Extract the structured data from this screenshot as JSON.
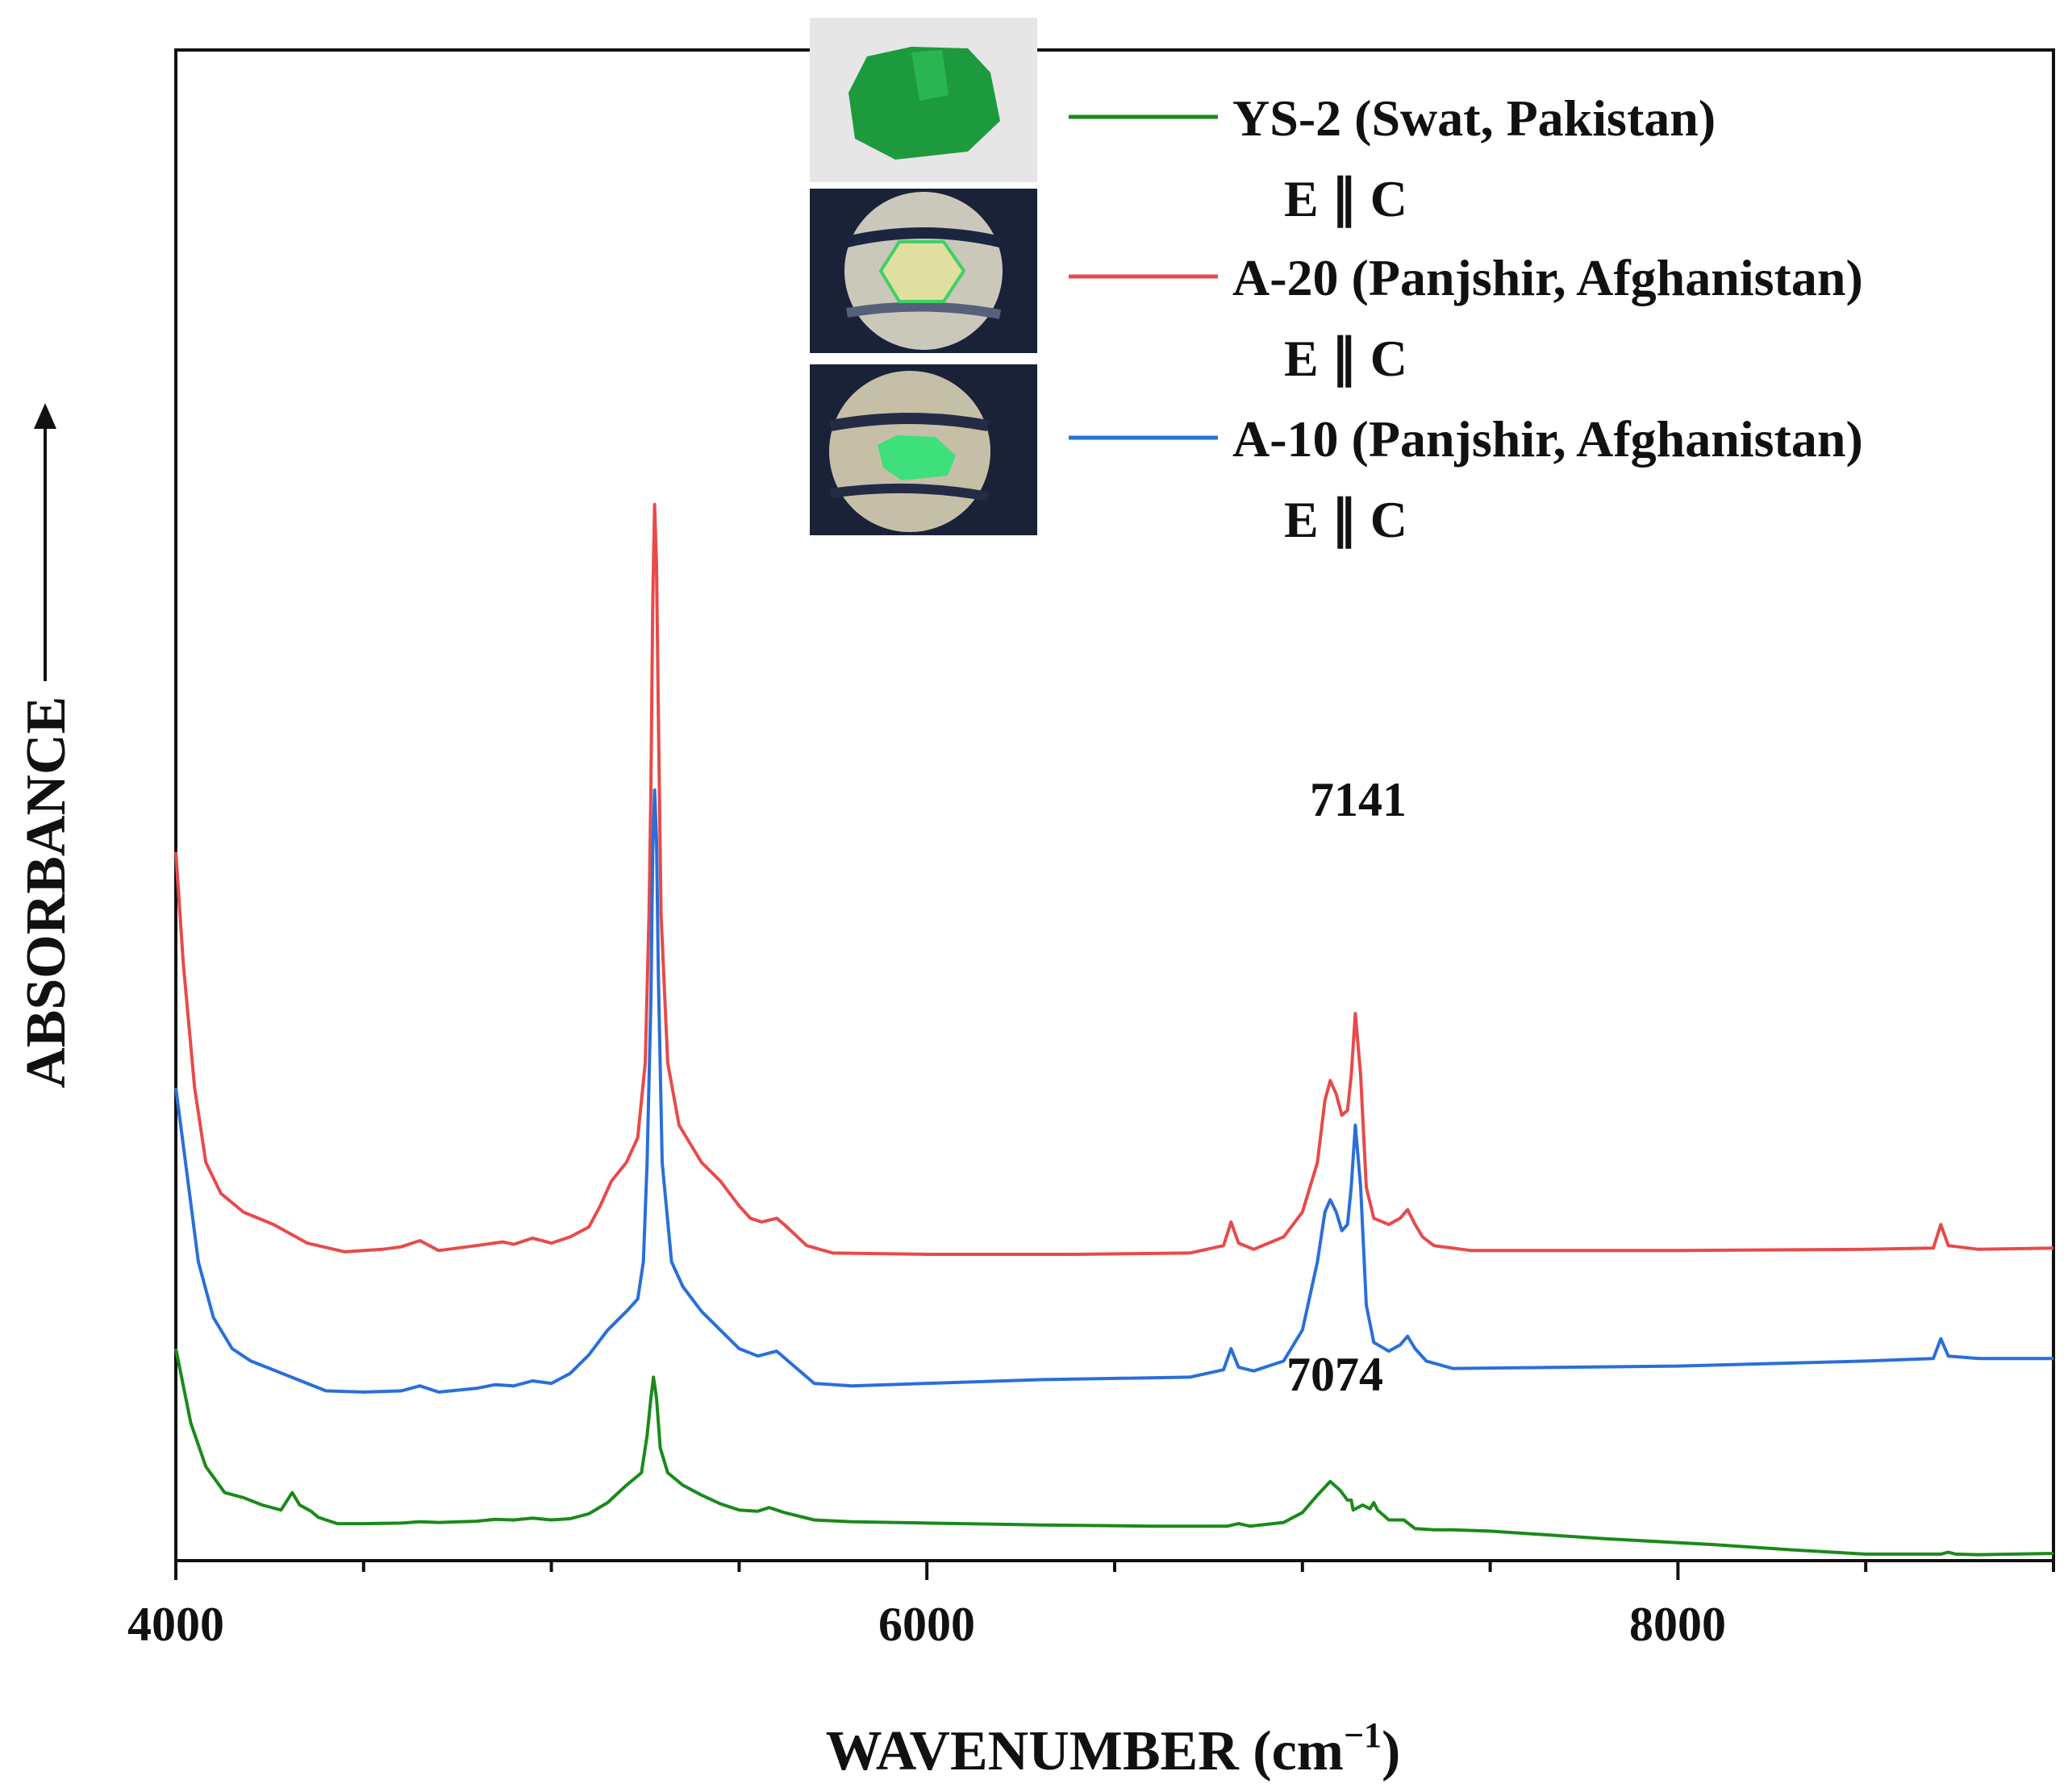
{
  "chart_data": {
    "type": "line",
    "xlabel": "WAVENUMBER (cm",
    "xlabel_sup": "−1",
    "xlabel_close": ")",
    "ylabel": "ABSORBANCE",
    "xlim": [
      4000,
      9000
    ],
    "x_ticks": [
      "4000",
      "6000",
      "8000"
    ],
    "annotations": [
      {
        "text": "7141",
        "x": 7141,
        "series": "A-20 (Panjshir, Afghanistan)"
      },
      {
        "text": "7074",
        "x": 7074,
        "series": "YS-2 (Swat, Pakistan)"
      }
    ],
    "polarization_label": "E ∥ C",
    "series": [
      {
        "name": "YS-2 (Swat, Pakistan)",
        "color": "#1a8a1a",
        "points": [
          [
            4000,
            15.0
          ],
          [
            4040,
            9.0
          ],
          [
            4080,
            5.5
          ],
          [
            4130,
            3.4
          ],
          [
            4180,
            3.0
          ],
          [
            4230,
            2.4
          ],
          [
            4280,
            2.0
          ],
          [
            4310,
            3.4
          ],
          [
            4330,
            2.4
          ],
          [
            4360,
            1.9
          ],
          [
            4380,
            1.4
          ],
          [
            4430,
            0.9
          ],
          [
            4500,
            0.9
          ],
          [
            4600,
            0.95
          ],
          [
            4650,
            1.05
          ],
          [
            4700,
            1.0
          ],
          [
            4800,
            1.1
          ],
          [
            4850,
            1.25
          ],
          [
            4900,
            1.2
          ],
          [
            4950,
            1.35
          ],
          [
            5000,
            1.2
          ],
          [
            5050,
            1.3
          ],
          [
            5100,
            1.7
          ],
          [
            5150,
            2.6
          ],
          [
            5200,
            4.0
          ],
          [
            5240,
            5.0
          ],
          [
            5255,
            8.0
          ],
          [
            5265,
            11.0
          ],
          [
            5272,
            12.7
          ],
          [
            5280,
            11.0
          ],
          [
            5290,
            7.0
          ],
          [
            5310,
            5.0
          ],
          [
            5350,
            4.0
          ],
          [
            5400,
            3.2
          ],
          [
            5450,
            2.5
          ],
          [
            5500,
            2.0
          ],
          [
            5550,
            1.9
          ],
          [
            5580,
            2.2
          ],
          [
            5620,
            1.8
          ],
          [
            5700,
            1.2
          ],
          [
            5800,
            1.05
          ],
          [
            6000,
            0.95
          ],
          [
            6300,
            0.8
          ],
          [
            6600,
            0.7
          ],
          [
            6800,
            0.7
          ],
          [
            6830,
            0.9
          ],
          [
            6860,
            0.7
          ],
          [
            6950,
            1.0
          ],
          [
            7000,
            1.8
          ],
          [
            7040,
            3.2
          ],
          [
            7074,
            4.3
          ],
          [
            7100,
            3.6
          ],
          [
            7120,
            2.8
          ],
          [
            7130,
            2.8
          ],
          [
            7135,
            2.0
          ],
          [
            7160,
            2.4
          ],
          [
            7180,
            2.1
          ],
          [
            7190,
            2.6
          ],
          [
            7200,
            2.0
          ],
          [
            7230,
            1.2
          ],
          [
            7270,
            1.2
          ],
          [
            7300,
            0.5
          ],
          [
            7350,
            0.4
          ],
          [
            7400,
            0.4
          ],
          [
            7500,
            0.3
          ],
          [
            7800,
            -0.3
          ],
          [
            8100,
            -0.8
          ],
          [
            8300,
            -1.2
          ],
          [
            8500,
            -1.55
          ],
          [
            8700,
            -1.55
          ],
          [
            8720,
            -1.4
          ],
          [
            8740,
            -1.55
          ],
          [
            8800,
            -1.6
          ],
          [
            9000,
            -1.5
          ]
        ]
      },
      {
        "name": "A-20 (Panjshir, Afghanistan)",
        "color": "#e84a4a",
        "points": [
          [
            4000,
            55.0
          ],
          [
            4020,
            46.0
          ],
          [
            4050,
            36.0
          ],
          [
            4080,
            30.0
          ],
          [
            4120,
            27.5
          ],
          [
            4180,
            26.0
          ],
          [
            4260,
            25.0
          ],
          [
            4350,
            23.5
          ],
          [
            4450,
            22.8
          ],
          [
            4550,
            23.0
          ],
          [
            4600,
            23.2
          ],
          [
            4650,
            23.7
          ],
          [
            4700,
            22.9
          ],
          [
            4800,
            23.3
          ],
          [
            4870,
            23.6
          ],
          [
            4900,
            23.4
          ],
          [
            4950,
            23.9
          ],
          [
            5000,
            23.5
          ],
          [
            5050,
            24.0
          ],
          [
            5100,
            24.8
          ],
          [
            5130,
            26.5
          ],
          [
            5160,
            28.5
          ],
          [
            5200,
            30.0
          ],
          [
            5230,
            32.0
          ],
          [
            5250,
            38.0
          ],
          [
            5260,
            50.0
          ],
          [
            5265,
            60.0
          ],
          [
            5270,
            75.0
          ],
          [
            5275,
            83.0
          ],
          [
            5280,
            78.0
          ],
          [
            5285,
            66.0
          ],
          [
            5292,
            50.0
          ],
          [
            5310,
            38.0
          ],
          [
            5340,
            33.0
          ],
          [
            5400,
            30.0
          ],
          [
            5450,
            28.5
          ],
          [
            5500,
            26.5
          ],
          [
            5530,
            25.5
          ],
          [
            5560,
            25.2
          ],
          [
            5600,
            25.5
          ],
          [
            5620,
            25.0
          ],
          [
            5680,
            23.3
          ],
          [
            5750,
            22.7
          ],
          [
            6000,
            22.6
          ],
          [
            6400,
            22.6
          ],
          [
            6700,
            22.7
          ],
          [
            6790,
            23.3
          ],
          [
            6810,
            25.2
          ],
          [
            6830,
            23.5
          ],
          [
            6870,
            23.0
          ],
          [
            6950,
            24.0
          ],
          [
            7000,
            26.0
          ],
          [
            7040,
            30.0
          ],
          [
            7060,
            35.0
          ],
          [
            7074,
            36.6
          ],
          [
            7090,
            35.5
          ],
          [
            7105,
            33.8
          ],
          [
            7120,
            34.2
          ],
          [
            7130,
            37.0
          ],
          [
            7141,
            42.0
          ],
          [
            7155,
            37.0
          ],
          [
            7170,
            28.0
          ],
          [
            7190,
            25.5
          ],
          [
            7230,
            25.0
          ],
          [
            7260,
            25.5
          ],
          [
            7280,
            26.2
          ],
          [
            7300,
            25.0
          ],
          [
            7320,
            24.0
          ],
          [
            7350,
            23.3
          ],
          [
            7450,
            22.9
          ],
          [
            8000,
            22.9
          ],
          [
            8500,
            23.0
          ],
          [
            8680,
            23.1
          ],
          [
            8700,
            25.0
          ],
          [
            8720,
            23.3
          ],
          [
            8800,
            23.0
          ],
          [
            9000,
            23.1
          ]
        ]
      },
      {
        "name": "A-10 (Panjshir, Afghanistan)",
        "color": "#2a6fd8",
        "points": [
          [
            4000,
            36.0
          ],
          [
            4030,
            29.0
          ],
          [
            4060,
            22.0
          ],
          [
            4100,
            17.5
          ],
          [
            4150,
            15.0
          ],
          [
            4200,
            14.0
          ],
          [
            4300,
            12.8
          ],
          [
            4400,
            11.6
          ],
          [
            4500,
            11.5
          ],
          [
            4600,
            11.6
          ],
          [
            4650,
            12.0
          ],
          [
            4700,
            11.5
          ],
          [
            4800,
            11.8
          ],
          [
            4850,
            12.1
          ],
          [
            4900,
            12.0
          ],
          [
            4950,
            12.4
          ],
          [
            5000,
            12.2
          ],
          [
            5050,
            13.0
          ],
          [
            5100,
            14.5
          ],
          [
            5150,
            16.5
          ],
          [
            5200,
            18.0
          ],
          [
            5230,
            19.0
          ],
          [
            5245,
            22.0
          ],
          [
            5255,
            30.0
          ],
          [
            5265,
            43.0
          ],
          [
            5270,
            55.0
          ],
          [
            5275,
            60.0
          ],
          [
            5280,
            56.0
          ],
          [
            5285,
            45.0
          ],
          [
            5295,
            30.0
          ],
          [
            5320,
            22.0
          ],
          [
            5350,
            20.0
          ],
          [
            5400,
            18.0
          ],
          [
            5450,
            16.5
          ],
          [
            5500,
            15.0
          ],
          [
            5550,
            14.4
          ],
          [
            5600,
            14.8
          ],
          [
            5650,
            13.5
          ],
          [
            5700,
            12.2
          ],
          [
            5800,
            12.0
          ],
          [
            6000,
            12.2
          ],
          [
            6300,
            12.5
          ],
          [
            6700,
            12.7
          ],
          [
            6790,
            13.3
          ],
          [
            6810,
            15.0
          ],
          [
            6830,
            13.5
          ],
          [
            6870,
            13.2
          ],
          [
            6950,
            14.0
          ],
          [
            7000,
            16.5
          ],
          [
            7040,
            22.0
          ],
          [
            7060,
            26.0
          ],
          [
            7074,
            27.0
          ],
          [
            7090,
            26.0
          ],
          [
            7105,
            24.5
          ],
          [
            7120,
            25.0
          ],
          [
            7130,
            28.0
          ],
          [
            7141,
            33.0
          ],
          [
            7155,
            28.0
          ],
          [
            7170,
            18.5
          ],
          [
            7190,
            15.5
          ],
          [
            7230,
            14.8
          ],
          [
            7260,
            15.3
          ],
          [
            7280,
            16.0
          ],
          [
            7300,
            15.0
          ],
          [
            7330,
            14.0
          ],
          [
            7400,
            13.4
          ],
          [
            8000,
            13.6
          ],
          [
            8500,
            14.0
          ],
          [
            8680,
            14.2
          ],
          [
            8700,
            15.8
          ],
          [
            8720,
            14.4
          ],
          [
            8800,
            14.2
          ],
          [
            9000,
            14.2
          ]
        ]
      }
    ]
  }
}
